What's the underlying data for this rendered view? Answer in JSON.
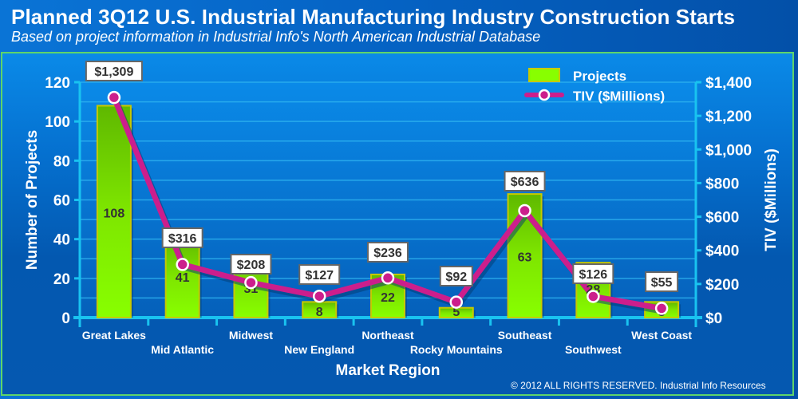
{
  "header": {
    "title": "Planned 3Q12 U.S. Industrial Manufacturing Industry Construction Starts",
    "subtitle": "Based on project information in Industrial Info's North American Industrial Database"
  },
  "footer": {
    "copyright": "© 2012 ALL RIGHTS RESERVED. Industrial Info Resources"
  },
  "colors": {
    "bar": "#88ff00",
    "bar_border": "#c8c800",
    "line": "#cc1e8c",
    "axis": "#19c3f0",
    "label_text": "#333333"
  },
  "chart_data": {
    "type": "bar",
    "title": "Planned 3Q12 U.S. Industrial Manufacturing Industry Construction Starts",
    "xlabel": "Market Region",
    "ylabel": "Number of Projects",
    "y2label": "TIV ($Millions)",
    "ylim": [
      0,
      120
    ],
    "y2lim": [
      0,
      1400
    ],
    "yticks": [
      "0",
      "20",
      "40",
      "60",
      "80",
      "100",
      "120"
    ],
    "y2ticks": [
      "$0",
      "$200",
      "$400",
      "$600",
      "$800",
      "$1,000",
      "$1,200",
      "$1,400"
    ],
    "grid": true,
    "legend_position": "top-right",
    "categories": [
      "Great Lakes",
      "Mid Atlantic",
      "Midwest",
      "New England",
      "Northeast",
      "Rocky Mountains",
      "Southeast",
      "Southwest",
      "West Coast"
    ],
    "series": [
      {
        "name": "Projects",
        "type": "bar",
        "axis": "left",
        "values": [
          108,
          41,
          31,
          8,
          22,
          5,
          63,
          28,
          8
        ],
        "labels": [
          "108",
          "41",
          "31",
          "8",
          "22",
          "5",
          "63",
          "28",
          "8"
        ]
      },
      {
        "name": "TIV ($Millions)",
        "type": "line",
        "axis": "right",
        "values": [
          1309,
          316,
          208,
          127,
          236,
          92,
          636,
          126,
          55
        ],
        "labels": [
          "$1,309",
          "$316",
          "$208",
          "$127",
          "$236",
          "$92",
          "$636",
          "$126",
          "$55"
        ]
      }
    ]
  }
}
